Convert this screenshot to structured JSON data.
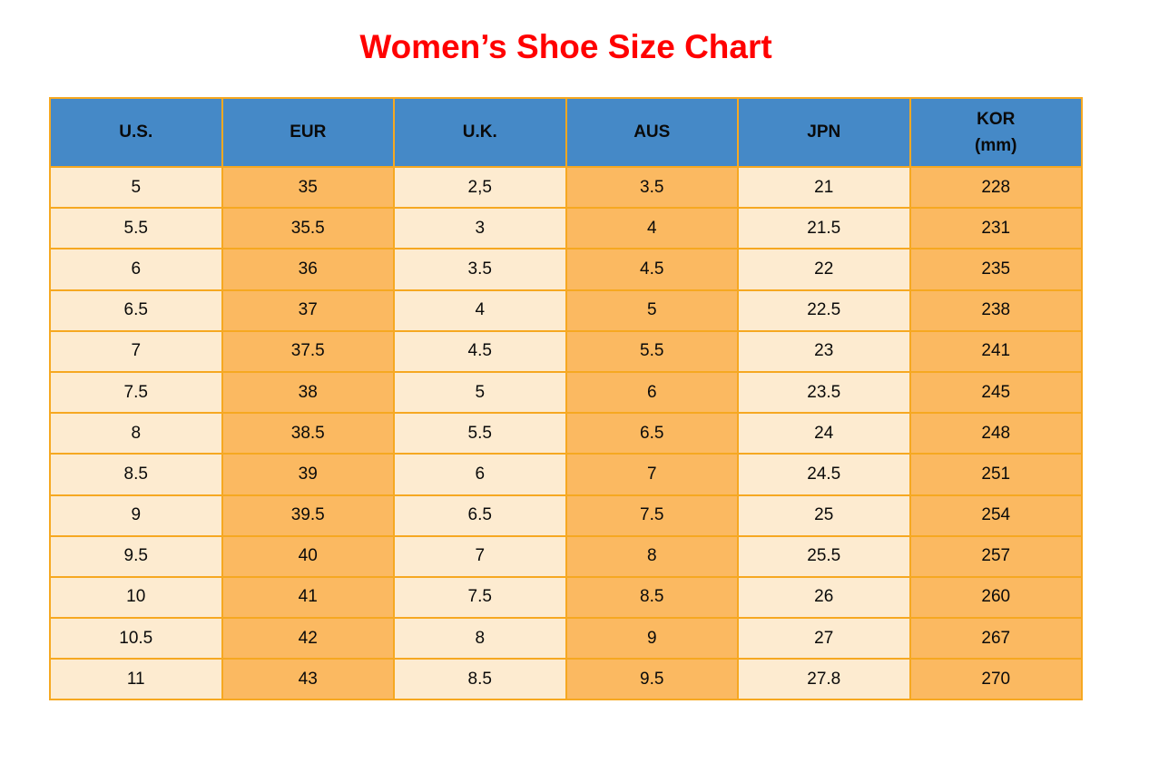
{
  "page": {
    "title": "Women’s Shoe Size Chart"
  },
  "colors": {
    "title_red": "#ff0000",
    "header_blue": "#4589c7",
    "cell_cream": "#fdebd0",
    "cell_orange": "#fbb961",
    "border_orange": "#f6a821",
    "text_black": "#0a0a0a"
  },
  "table": {
    "columns": [
      {
        "label": "U.S.",
        "sublabel": ""
      },
      {
        "label": "EUR",
        "sublabel": ""
      },
      {
        "label": "U.K.",
        "sublabel": ""
      },
      {
        "label": "AUS",
        "sublabel": ""
      },
      {
        "label": "JPN",
        "sublabel": ""
      },
      {
        "label": "KOR",
        "sublabel": "(mm)"
      }
    ],
    "rows": [
      [
        "5",
        "35",
        "2,5",
        "3.5",
        "21",
        "228"
      ],
      [
        "5.5",
        "35.5",
        "3",
        "4",
        "21.5",
        "231"
      ],
      [
        "6",
        "36",
        "3.5",
        "4.5",
        "22",
        "235"
      ],
      [
        "6.5",
        "37",
        "4",
        "5",
        "22.5",
        "238"
      ],
      [
        "7",
        "37.5",
        "4.5",
        "5.5",
        "23",
        "241"
      ],
      [
        "7.5",
        "38",
        "5",
        "6",
        "23.5",
        "245"
      ],
      [
        "8",
        "38.5",
        "5.5",
        "6.5",
        "24",
        "248"
      ],
      [
        "8.5",
        "39",
        "6",
        "7",
        "24.5",
        "251"
      ],
      [
        "9",
        "39.5",
        "6.5",
        "7.5",
        "25",
        "254"
      ],
      [
        "9.5",
        "40",
        "7",
        "8",
        "25.5",
        "257"
      ],
      [
        "10",
        "41",
        "7.5",
        "8.5",
        "26",
        "260"
      ],
      [
        "10.5",
        "42",
        "8",
        "9",
        "27",
        "267"
      ],
      [
        "11",
        "43",
        "8.5",
        "9.5",
        "27.8",
        "270"
      ]
    ]
  },
  "chart_data": {
    "type": "table",
    "title": "Women’s Shoe Size Chart",
    "columns": [
      "U.S.",
      "EUR",
      "U.K.",
      "AUS",
      "JPN",
      "KOR (mm)"
    ],
    "rows": [
      [
        "5",
        "35",
        "2,5",
        "3.5",
        "21",
        "228"
      ],
      [
        "5.5",
        "35.5",
        "3",
        "4",
        "21.5",
        "231"
      ],
      [
        "6",
        "36",
        "3.5",
        "4.5",
        "22",
        "235"
      ],
      [
        "6.5",
        "37",
        "4",
        "5",
        "22.5",
        "238"
      ],
      [
        "7",
        "37.5",
        "4.5",
        "5.5",
        "23",
        "241"
      ],
      [
        "7.5",
        "38",
        "5",
        "6",
        "23.5",
        "245"
      ],
      [
        "8",
        "38.5",
        "5.5",
        "6.5",
        "24",
        "248"
      ],
      [
        "8.5",
        "39",
        "6",
        "7",
        "24.5",
        "251"
      ],
      [
        "9",
        "39.5",
        "6.5",
        "7.5",
        "25",
        "254"
      ],
      [
        "9.5",
        "40",
        "7",
        "8",
        "25.5",
        "257"
      ],
      [
        "10",
        "41",
        "7.5",
        "8.5",
        "26",
        "260"
      ],
      [
        "10.5",
        "42",
        "8",
        "9",
        "27",
        "267"
      ],
      [
        "11",
        "43",
        "8.5",
        "9.5",
        "27.8",
        "270"
      ]
    ],
    "layout_hints": {
      "header_background": "#4589c7",
      "column_stripe_colors": [
        "#fdebd0",
        "#fbb961"
      ],
      "border_color": "#f6a821",
      "title_color": "#ff0000"
    }
  }
}
